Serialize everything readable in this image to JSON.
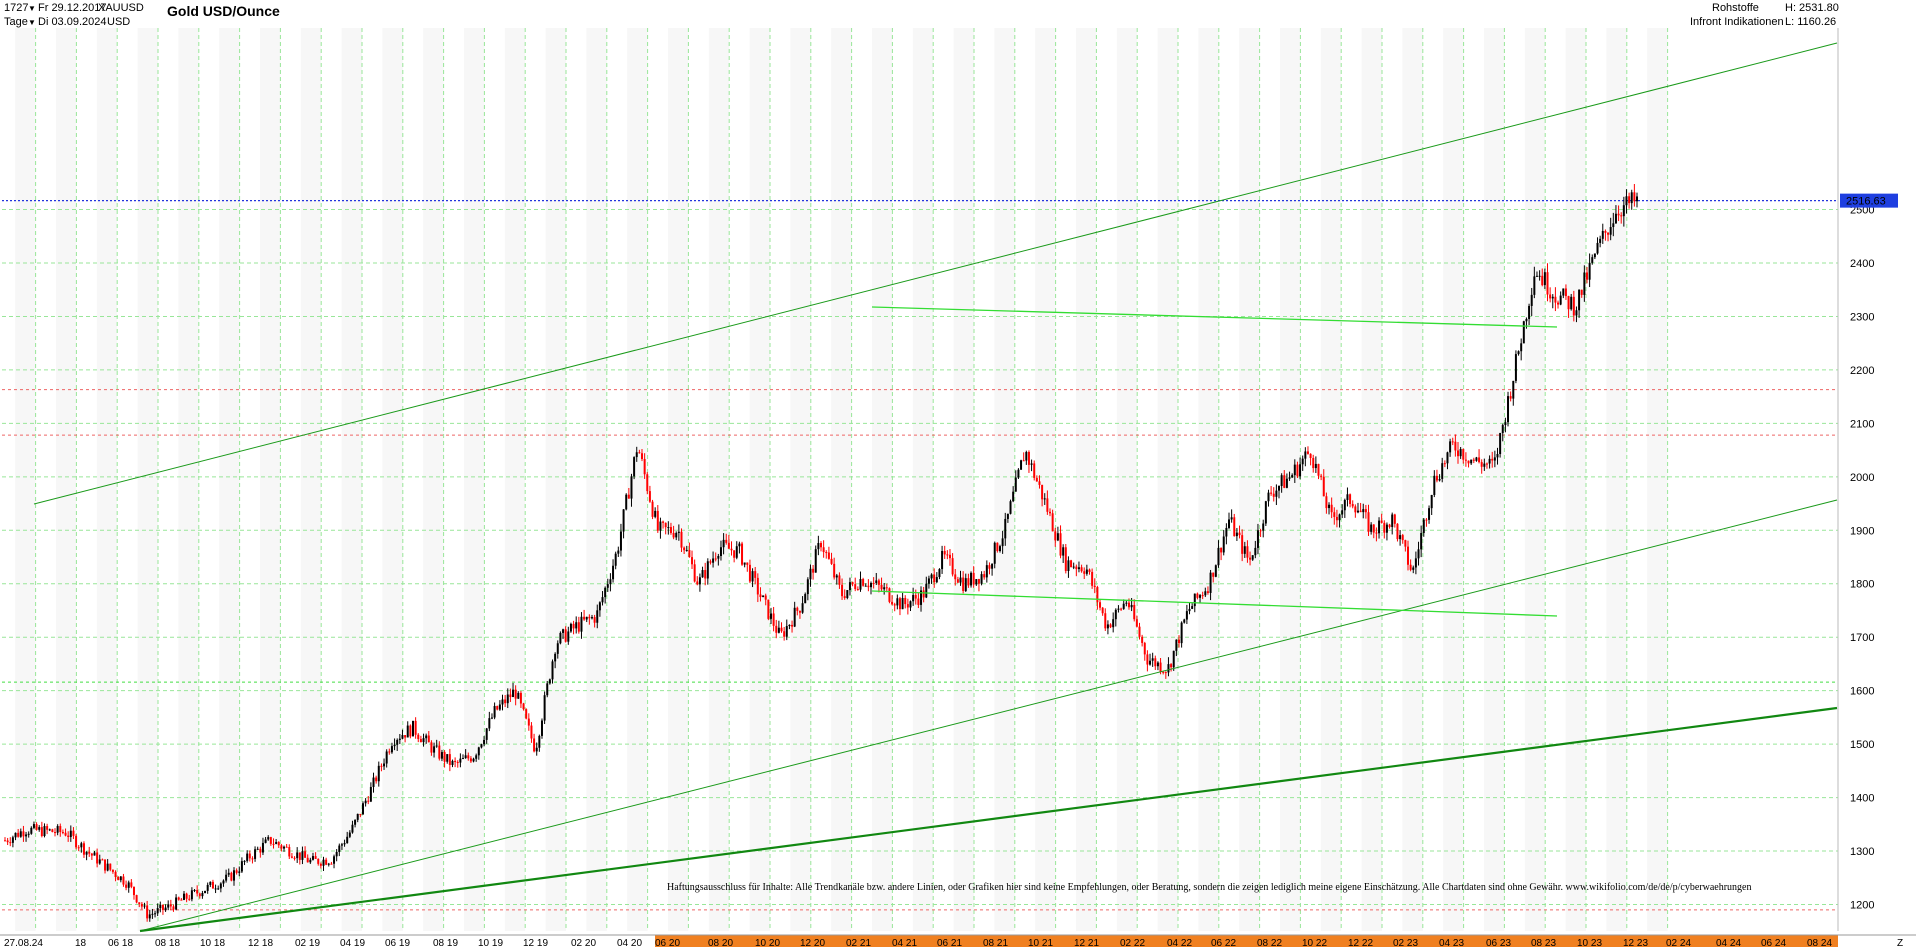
{
  "header": {
    "bars_count": "1727",
    "start_date": "Fr 29.12.2017",
    "symbol": "XAUUSD",
    "period": "Tage",
    "end_date": "Di 03.09.2024",
    "currency": "USD",
    "title": "Gold USD/Ounce",
    "category": "Rohstoffe",
    "high_label": "H: 2531.80",
    "source": "Infront Indikationen",
    "low_label": "L: 1160.26"
  },
  "colors": {
    "candle_up": "#000000",
    "candle_down": "#ff0000",
    "channel_line": "#1a9a1a",
    "support_line_thick": "#118811",
    "triangle_line": "#33dd33",
    "price_marker_bg": "#1f3fe0",
    "grid": "#99e699",
    "h_red_dashed": "#ee6666",
    "x_axis_highlight": "#f08020"
  },
  "chart_data": {
    "type": "candlestick",
    "title": "Gold USD/Ounce",
    "y_range": [
      1160,
      2531.8
    ],
    "y_ticks": [
      1200,
      1300,
      1400,
      1500,
      1600,
      1700,
      1800,
      1900,
      2000,
      2100,
      2200,
      2300,
      2400,
      2500
    ],
    "last_price_label": "2516.63",
    "x_tick_labels": [
      "27.08.24",
      "18",
      "06 18",
      "08 18",
      "10 18",
      "12 18",
      "02 19",
      "04 19",
      "06 19",
      "08 19",
      "10 19",
      "12 19",
      "02 20",
      "04 20",
      "06 20",
      "08 20",
      "10 20",
      "12 20",
      "02 21",
      "04 21",
      "06 21",
      "08 21",
      "10 21",
      "12 21",
      "02 22",
      "04 22",
      "06 22",
      "08 22",
      "10 22",
      "12 22",
      "02 23",
      "04 23",
      "06 23",
      "08 23",
      "10 23",
      "12 23",
      "02 24",
      "04 24",
      "06 24",
      "08 24",
      "Z"
    ],
    "price_path": [
      [
        "2018-01",
        1320
      ],
      [
        "2018-02",
        1340
      ],
      [
        "2018-04",
        1335
      ],
      [
        "2018-05",
        1300
      ],
      [
        "2018-07",
        1240
      ],
      [
        "2018-08",
        1180
      ],
      [
        "2018-09",
        1195
      ],
      [
        "2018-10",
        1215
      ],
      [
        "2018-12",
        1250
      ],
      [
        "2019-01",
        1290
      ],
      [
        "2019-02",
        1320
      ],
      [
        "2019-04",
        1280
      ],
      [
        "2019-05",
        1285
      ],
      [
        "2019-06",
        1340
      ],
      [
        "2019-07",
        1420
      ],
      [
        "2019-08",
        1510
      ],
      [
        "2019-09",
        1530
      ],
      [
        "2019-10",
        1490
      ],
      [
        "2019-11",
        1460
      ],
      [
        "2019-12",
        1480
      ],
      [
        "2020-01",
        1560
      ],
      [
        "2020-02",
        1600
      ],
      [
        "2020-03",
        1490
      ],
      [
        "2020-04",
        1690
      ],
      [
        "2020-05",
        1720
      ],
      [
        "2020-06",
        1740
      ],
      [
        "2020-07",
        1860
      ],
      [
        "2020-08",
        2060
      ],
      [
        "2020-09",
        1900
      ],
      [
        "2020-10",
        1900
      ],
      [
        "2020-11",
        1800
      ],
      [
        "2020-12",
        1870
      ],
      [
        "2021-01",
        1860
      ],
      [
        "2021-02",
        1780
      ],
      [
        "2021-03",
        1700
      ],
      [
        "2021-04",
        1760
      ],
      [
        "2021-05",
        1880
      ],
      [
        "2021-06",
        1780
      ],
      [
        "2021-07",
        1810
      ],
      [
        "2021-08",
        1790
      ],
      [
        "2021-09",
        1760
      ],
      [
        "2021-10",
        1780
      ],
      [
        "2021-11",
        1850
      ],
      [
        "2021-12",
        1800
      ],
      [
        "2022-01",
        1820
      ],
      [
        "2022-02",
        1900
      ],
      [
        "2022-03",
        2050
      ],
      [
        "2022-04",
        1950
      ],
      [
        "2022-05",
        1840
      ],
      [
        "2022-06",
        1830
      ],
      [
        "2022-07",
        1720
      ],
      [
        "2022-08",
        1770
      ],
      [
        "2022-09",
        1660
      ],
      [
        "2022-10",
        1640
      ],
      [
        "2022-11",
        1750
      ],
      [
        "2022-12",
        1800
      ],
      [
        "2023-01",
        1920
      ],
      [
        "2023-02",
        1840
      ],
      [
        "2023-03",
        1970
      ],
      [
        "2023-04",
        2000
      ],
      [
        "2023-05",
        2050
      ],
      [
        "2023-06",
        1920
      ],
      [
        "2023-07",
        1960
      ],
      [
        "2023-08",
        1900
      ],
      [
        "2023-09",
        1920
      ],
      [
        "2023-10",
        1820
      ],
      [
        "2023-11",
        1990
      ],
      [
        "2023-12",
        2060
      ],
      [
        "2024-01",
        2030
      ],
      [
        "2024-02",
        2020
      ],
      [
        "2024-03",
        2200
      ],
      [
        "2024-04",
        2390
      ],
      [
        "2024-05",
        2340
      ],
      [
        "2024-06",
        2320
      ],
      [
        "2024-07",
        2420
      ],
      [
        "2024-08",
        2500
      ],
      [
        "2024-09",
        2516.63
      ]
    ],
    "disclaimer": "Haftungsausschluss für Inhalte: Alle Trendkanäle bzw. andere Linien, oder Grafiken hier sind keine Empfehlungen, oder Beratung, sondern die zeigen lediglich meine eigene Einschätzung. Alle Chartdaten sind ohne Gewähr.  www.wikifolio.com/de/de/p/cyberwaehrungen"
  }
}
